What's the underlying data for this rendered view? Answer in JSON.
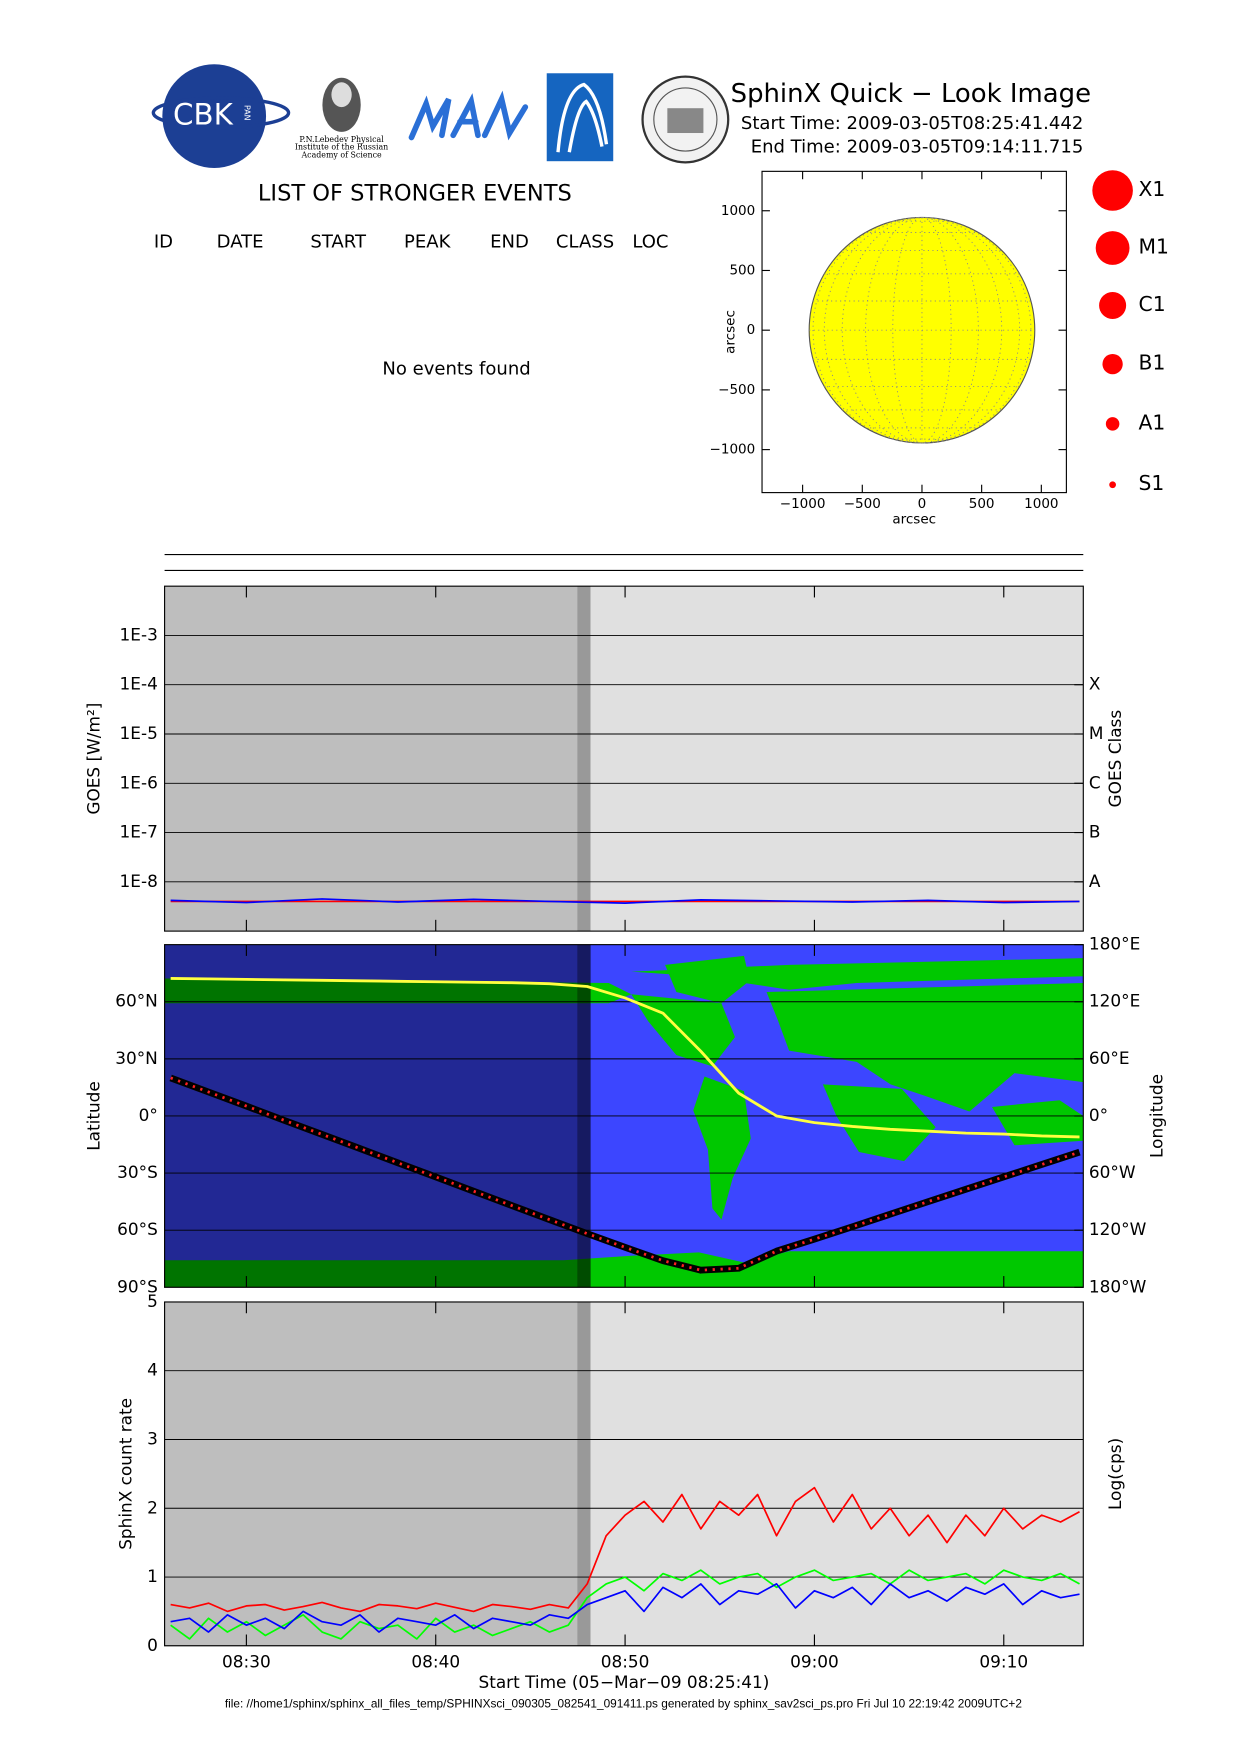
{
  "header": {
    "title": "SphinX Quick − Look Image",
    "start": "Start Time: 2009-03-05T08:25:41.442",
    "end": "End Time: 2009-03-05T09:14:11.715"
  },
  "logos": {
    "cbk": "CBK",
    "pan": "PAN",
    "lebedev": [
      "P.N.Lebedev Physical",
      "Institute of the Russian",
      "Academy of Science"
    ]
  },
  "events": {
    "title": "LIST OF STRONGER EVENTS",
    "columns": [
      "ID",
      "DATE",
      "START",
      "PEAK",
      "END",
      "CLASS",
      "LOC"
    ],
    "message": "No events found"
  },
  "flare_classes": [
    "X1",
    "M1",
    "C1",
    "B1",
    "A1",
    "S1"
  ],
  "footer": "file: //home1/sphinx/sphinx_all_files_temp/SPHINXsci_090305_082541_091411.ps generated by sphinx_sav2sci_ps.pro Fri Jul 10 22:19:42 2009UTC+2",
  "chart_data": [
    {
      "type": "disk",
      "xlabel": "arcsec",
      "ylabel": "arcsec",
      "xlim": [
        -1340,
        1210
      ],
      "ylim": [
        -1360,
        1330
      ],
      "xticks": [
        {
          "value": -1000,
          "label": "−1000"
        },
        {
          "value": -500,
          "label": "−500"
        },
        0,
        500,
        1000
      ],
      "yticks": [
        {
          "value": -1000,
          "label": "−1000"
        },
        {
          "value": -500,
          "label": "−500"
        },
        0,
        500,
        1000
      ],
      "center": [
        0,
        0
      ],
      "radius": 945,
      "color": "#ffff00"
    },
    {
      "type": "line",
      "ylabel": "GOES [W/m²]",
      "y2label": "GOES Class",
      "yscale": "log",
      "xlim": [
        505.68,
        554.2
      ],
      "ylim": [
        1e-09,
        0.01
      ],
      "y2lim": [
        1e-09,
        0.01
      ],
      "yticks": [
        {
          "value": 0.001,
          "label": "1E-3"
        },
        {
          "value": 0.0001,
          "label": "1E-4"
        },
        {
          "value": 1e-05,
          "label": "1E-5"
        },
        {
          "value": 1e-06,
          "label": "1E-6"
        },
        {
          "value": 1e-07,
          "label": "1E-7"
        },
        {
          "value": 1e-08,
          "label": "1E-8"
        }
      ],
      "y2ticks": [
        {
          "value": 0.0001,
          "label": "X"
        },
        {
          "value": 1e-05,
          "label": "M"
        },
        {
          "value": 1e-06,
          "label": "C"
        },
        {
          "value": 1e-07,
          "label": "B"
        },
        {
          "value": 1e-08,
          "label": "A"
        }
      ],
      "shading": [
        {
          "from": 505.68,
          "to": 527.47,
          "color": "#bebebe"
        },
        {
          "from": 527.47,
          "to": 528.18,
          "color": "#999999"
        },
        {
          "from": 528.18,
          "to": 554.2,
          "color": "#e0e0e0"
        }
      ],
      "x": [
        506,
        510,
        514,
        518,
        522,
        526,
        530,
        534,
        538,
        542,
        546,
        550,
        554
      ],
      "series": [
        {
          "color": "#ff0000",
          "values": [
            4e-09,
            4e-09,
            4e-09,
            4e-09,
            4e-09,
            4e-09,
            4e-09,
            4e-09,
            4e-09,
            4e-09,
            4e-09,
            4e-09,
            4e-09
          ]
        },
        {
          "color": "#0000ff",
          "values": [
            4.2e-09,
            3.8e-09,
            4.5e-09,
            3.9e-09,
            4.4e-09,
            4e-09,
            3.7e-09,
            4.3e-09,
            4.1e-09,
            3.9e-09,
            4.2e-09,
            3.8e-09,
            4e-09
          ]
        }
      ]
    },
    {
      "type": "map",
      "ylabel": "Latitude",
      "y2label": "Longitude",
      "xlim": [
        505.68,
        554.2
      ],
      "ylim": [
        -90,
        90
      ],
      "y2lim": [
        -180,
        180
      ],
      "yticks": [
        {
          "value": 60,
          "label": "60°N"
        },
        {
          "value": 30,
          "label": "30°N"
        },
        {
          "value": 0,
          "label": "0°"
        },
        {
          "value": -30,
          "label": "30°S"
        },
        {
          "value": -60,
          "label": "60°S"
        },
        {
          "value": -90,
          "label": "90°S"
        }
      ],
      "y2ticks": [
        {
          "value": 180,
          "label": "180°E"
        },
        {
          "value": 120,
          "label": "120°E"
        },
        {
          "value": 60,
          "label": "60°E"
        },
        {
          "value": 0,
          "label": "0°"
        },
        {
          "value": -60,
          "label": "60°W"
        },
        {
          "value": -120,
          "label": "120°W"
        },
        {
          "value": -180,
          "label": "180°W"
        }
      ],
      "shading": [
        {
          "from": 505.68,
          "to": 527.47,
          "color": "#000000",
          "opacity": 0.42
        },
        {
          "from": 527.47,
          "to": 528.18,
          "color": "#000000",
          "opacity": 0.62
        }
      ],
      "x": [
        506,
        508,
        510,
        512,
        514,
        516,
        518,
        520,
        522,
        524,
        526,
        528,
        530,
        532,
        534,
        536,
        538,
        540,
        542,
        544,
        546,
        548,
        550,
        552,
        554
      ],
      "series": [
        {
          "color": "#000000",
          "values": [
            20,
            12.6,
            5.2,
            -2.3,
            -9.7,
            -17.1,
            -24.6,
            -32,
            -39.5,
            -47,
            -54.4,
            -61.8,
            -69,
            -76,
            -81,
            -80,
            -71,
            -64.7,
            -58.2,
            -51.6,
            -45,
            -38.5,
            -32,
            -25.5,
            -19
          ]
        },
        {
          "color": "#ffff40",
          "axis": "y2",
          "values": [
            144.5,
            144,
            143.5,
            143,
            142.5,
            142,
            141.5,
            141,
            140.5,
            140,
            139,
            136,
            124,
            108,
            68,
            24,
            0,
            -7,
            -11,
            -14,
            -16,
            -18,
            -19,
            -21,
            -22
          ]
        }
      ]
    },
    {
      "type": "line",
      "ylabel": "SphinX count rate",
      "y2label": "Log(cps)",
      "xlabel": "Start Time (05−Mar−09 08:25:41)",
      "xlim": [
        505.68,
        554.2
      ],
      "ylim": [
        0,
        5
      ],
      "yticks": [
        0,
        1,
        2,
        3,
        4,
        5
      ],
      "xticks": [
        {
          "value": 510,
          "label": "08:30"
        },
        {
          "value": 520,
          "label": "08:40"
        },
        {
          "value": 530,
          "label": "08:50"
        },
        {
          "value": 540,
          "label": "09:00"
        },
        {
          "value": 550,
          "label": "09:10"
        }
      ],
      "shading": [
        {
          "from": 505.68,
          "to": 527.47,
          "color": "#bebebe"
        },
        {
          "from": 527.47,
          "to": 528.18,
          "color": "#999999"
        },
        {
          "from": 528.18,
          "to": 554.2,
          "color": "#e0e0e0"
        }
      ],
      "x": [
        506,
        507,
        508,
        509,
        510,
        511,
        512,
        513,
        514,
        515,
        516,
        517,
        518,
        519,
        520,
        521,
        522,
        523,
        524,
        525,
        526,
        527,
        528,
        529,
        530,
        531,
        532,
        533,
        534,
        535,
        536,
        537,
        538,
        539,
        540,
        541,
        542,
        543,
        544,
        545,
        546,
        547,
        548,
        549,
        550,
        551,
        552,
        553,
        554
      ],
      "series": [
        {
          "color": "#ff0000",
          "values": [
            0.6,
            0.55,
            0.62,
            0.5,
            0.58,
            0.6,
            0.52,
            0.57,
            0.63,
            0.55,
            0.5,
            0.6,
            0.58,
            0.54,
            0.62,
            0.56,
            0.5,
            0.6,
            0.57,
            0.53,
            0.6,
            0.55,
            0.9,
            1.6,
            1.9,
            2.1,
            1.8,
            2.2,
            1.7,
            2.1,
            1.9,
            2.2,
            1.6,
            2.1,
            2.3,
            1.8,
            2.2,
            1.7,
            2.0,
            1.6,
            1.9,
            1.5,
            1.9,
            1.6,
            2.0,
            1.7,
            1.9,
            1.8,
            1.95
          ]
        },
        {
          "color": "#00ff00",
          "values": [
            0.3,
            0.1,
            0.4,
            0.2,
            0.35,
            0.15,
            0.3,
            0.45,
            0.2,
            0.1,
            0.35,
            0.25,
            0.3,
            0.1,
            0.4,
            0.2,
            0.3,
            0.15,
            0.25,
            0.35,
            0.2,
            0.3,
            0.7,
            0.9,
            1.0,
            0.8,
            1.05,
            0.95,
            1.1,
            0.9,
            1.0,
            1.05,
            0.85,
            1.0,
            1.1,
            0.95,
            1.0,
            1.05,
            0.9,
            1.1,
            0.95,
            1.0,
            1.05,
            0.9,
            1.1,
            1.0,
            0.95,
            1.05,
            0.9
          ]
        },
        {
          "color": "#0000ff",
          "values": [
            0.35,
            0.4,
            0.2,
            0.45,
            0.3,
            0.4,
            0.25,
            0.5,
            0.35,
            0.3,
            0.45,
            0.2,
            0.4,
            0.35,
            0.3,
            0.45,
            0.25,
            0.4,
            0.35,
            0.3,
            0.45,
            0.4,
            0.6,
            0.7,
            0.8,
            0.5,
            0.85,
            0.7,
            0.9,
            0.6,
            0.8,
            0.75,
            0.9,
            0.55,
            0.8,
            0.7,
            0.85,
            0.6,
            0.9,
            0.7,
            0.8,
            0.65,
            0.85,
            0.75,
            0.9,
            0.6,
            0.8,
            0.7,
            0.75
          ]
        }
      ]
    }
  ]
}
